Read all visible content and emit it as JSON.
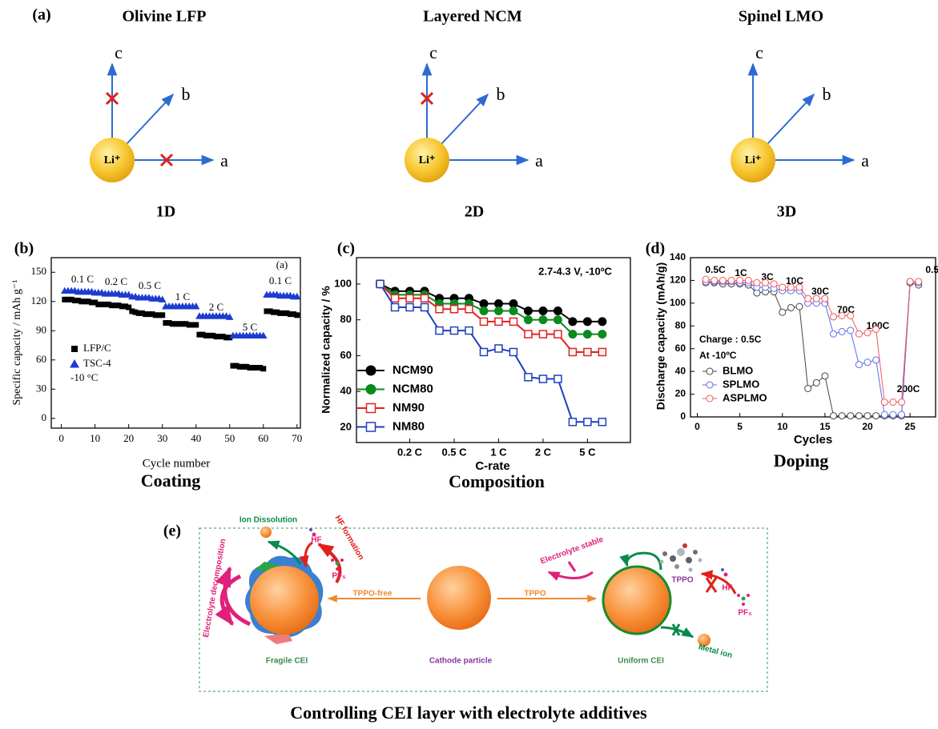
{
  "panel_a": {
    "label": "(a)",
    "diagrams": [
      {
        "title": "Olivine LFP",
        "axes": [
          "c",
          "b",
          "a"
        ],
        "ion": "Li⁺",
        "dimension": "1D"
      },
      {
        "title": "Layered NCM",
        "axes": [
          "c",
          "b",
          "a"
        ],
        "ion": "Li⁺",
        "dimension": "2D"
      },
      {
        "title": "Spinel LMO",
        "axes": [
          "c",
          "b",
          "a"
        ],
        "ion": "Li⁺",
        "dimension": "3D"
      }
    ]
  },
  "chart_data": [
    {
      "type": "scatter",
      "panel_label": "(b)",
      "caption": "Coating",
      "x_label": "Cycle number",
      "y_label": "Specific capacity / mAh g⁻¹",
      "x": [
        1,
        2,
        3,
        4,
        5,
        6,
        7,
        8,
        9,
        10,
        11,
        12,
        13,
        14,
        15,
        16,
        17,
        18,
        19,
        20,
        21,
        22,
        23,
        24,
        25,
        26,
        27,
        28,
        29,
        30,
        31,
        32,
        33,
        34,
        35,
        36,
        37,
        38,
        39,
        40,
        41,
        42,
        43,
        44,
        45,
        46,
        47,
        48,
        49,
        50,
        51,
        52,
        53,
        54,
        55,
        56,
        57,
        58,
        59,
        60,
        61,
        62,
        63,
        64,
        65,
        66,
        67,
        68,
        69,
        70
      ],
      "xlim": [
        -3,
        71
      ],
      "xticks": [
        0,
        10,
        20,
        30,
        40,
        50,
        60,
        70
      ],
      "ylim": [
        -10,
        165
      ],
      "yticks": [
        0,
        30,
        60,
        90,
        120,
        150
      ],
      "annotations": [
        "0.1 C",
        "0.2 C",
        "0.5 C",
        "1 C",
        "2 C",
        "5 C",
        "0.1 C",
        "(a)",
        "-10 °C"
      ],
      "legend": "lower left",
      "series": [
        {
          "name": "LFP/C",
          "color": "#000000",
          "marker": "square",
          "values": [
            122,
            122,
            122,
            121,
            121,
            120,
            120,
            120,
            119,
            119,
            117,
            117,
            117,
            117,
            116,
            116,
            116,
            115,
            115,
            114,
            110,
            109,
            108,
            108,
            107,
            107,
            107,
            106,
            106,
            106,
            98,
            98,
            97,
            97,
            97,
            97,
            97,
            96,
            96,
            96,
            86,
            86,
            85,
            85,
            85,
            84,
            84,
            84,
            83,
            83,
            54,
            54,
            53,
            53,
            53,
            52,
            52,
            52,
            52,
            51,
            110,
            110,
            109,
            109,
            108,
            108,
            108,
            107,
            107,
            106
          ]
        },
        {
          "name": "TSC-4",
          "color": "#1c3ccf",
          "marker": "triangle",
          "values": [
            131,
            131,
            131,
            131,
            130,
            130,
            130,
            130,
            130,
            129,
            129,
            129,
            128,
            128,
            128,
            128,
            128,
            127,
            127,
            127,
            125,
            125,
            124,
            124,
            124,
            124,
            123,
            123,
            123,
            122,
            115,
            115,
            115,
            115,
            115,
            115,
            115,
            115,
            115,
            115,
            105,
            105,
            105,
            105,
            105,
            105,
            105,
            105,
            105,
            104,
            85,
            85,
            85,
            85,
            85,
            85,
            85,
            85,
            85,
            85,
            127,
            127,
            127,
            127,
            126,
            126,
            126,
            126,
            125,
            125
          ]
        }
      ]
    },
    {
      "type": "line",
      "panel_label": "(c)",
      "caption": "Composition",
      "x_label": "C-rate",
      "y_label": "Normalized capacity / %",
      "x": [
        1,
        2,
        3,
        4,
        5,
        6,
        7,
        8,
        9,
        10,
        11,
        12,
        13,
        14,
        15,
        16
      ],
      "xlim": [
        -0.6,
        17.9
      ],
      "xticks": [
        {
          "value": 3,
          "label": "0.2 C"
        },
        {
          "value": 6,
          "label": "0.5 C"
        },
        {
          "value": 9,
          "label": "1 C"
        },
        {
          "value": 12,
          "label": "2 C"
        },
        {
          "value": 15,
          "label": "5 C"
        }
      ],
      "ylim": [
        11.5,
        114.7
      ],
      "yticks": [
        20,
        40,
        60,
        80,
        100
      ],
      "annotations": [
        "2.7-4.3 V, -10ºC"
      ],
      "legend": "lower left",
      "series": [
        {
          "name": "NCM90",
          "color": "#000000",
          "marker": "circle",
          "values": [
            100,
            96,
            96,
            96,
            92,
            92,
            92,
            89,
            89,
            89,
            85,
            85,
            85,
            79,
            79,
            79
          ]
        },
        {
          "name": "NCM80",
          "color": "#0b8a1f",
          "marker": "circle",
          "values": [
            100,
            94,
            94,
            94,
            89,
            89,
            89,
            85,
            85,
            85,
            80,
            80,
            80,
            72,
            72,
            72
          ]
        },
        {
          "name": "NM90",
          "color": "#e02020",
          "marker": "square-open",
          "values": [
            100,
            92,
            92,
            92,
            86,
            86,
            86,
            79,
            79,
            79,
            72,
            72,
            72,
            62,
            62,
            62
          ]
        },
        {
          "name": "NM80",
          "color": "#1f3fbf",
          "marker": "square-open",
          "values": [
            100,
            87,
            87,
            87,
            74,
            74,
            74,
            62,
            64,
            62,
            48,
            47,
            47,
            23,
            23,
            23
          ]
        }
      ]
    },
    {
      "type": "line",
      "panel_label": "(d)",
      "caption": "Doping",
      "x_label": "Cycles",
      "y_label": "Discharge capacity (mAh/g)",
      "x": [
        1,
        2,
        3,
        4,
        5,
        6,
        7,
        8,
        9,
        10,
        11,
        12,
        13,
        14,
        15,
        16,
        17,
        18,
        19,
        20,
        21,
        22,
        23,
        24,
        25,
        26
      ],
      "xlim": [
        -0.8,
        28
      ],
      "xticks": [
        0,
        5,
        10,
        15,
        20,
        25
      ],
      "ylim": [
        0,
        140
      ],
      "yticks": [
        0,
        20,
        40,
        60,
        80,
        100,
        120,
        140
      ],
      "annotations": [
        "0.5C",
        "1C",
        "3C",
        "10C",
        "30C",
        "70C",
        "100C",
        "200C",
        "0.5C",
        "Charge : 0.5C",
        "At -10ºC"
      ],
      "legend": "center left",
      "series": [
        {
          "name": "BLMO",
          "color": "#444444",
          "marker": "circle-open",
          "values": [
            118,
            118,
            117,
            117,
            117,
            116,
            109,
            110,
            110,
            92,
            96,
            97,
            25,
            30,
            36,
            1,
            1,
            1,
            1,
            1,
            1,
            1,
            1,
            1,
            118,
            116
          ]
        },
        {
          "name": "SPLMO",
          "color": "#5b6cf0",
          "marker": "circle-open",
          "values": [
            119,
            119,
            119,
            119,
            118,
            118,
            114,
            114,
            113,
            111,
            111,
            111,
            100,
            100,
            100,
            73,
            75,
            76,
            46,
            48,
            50,
            2,
            2,
            2,
            119,
            118
          ]
        },
        {
          "name": "ASPLMO",
          "color": "#f0585a",
          "marker": "circle-open",
          "values": [
            121,
            120,
            120,
            120,
            120,
            120,
            118,
            118,
            117,
            114,
            114,
            114,
            104,
            104,
            104,
            88,
            89,
            89,
            73,
            74,
            77,
            13,
            13,
            13,
            119,
            119
          ]
        }
      ]
    }
  ],
  "panel_e": {
    "label": "(e)",
    "ion_dissolution": "Ion Dissolution",
    "hf_formation": "HF formation",
    "hf_left": "HF",
    "pf5_left": "PF₅",
    "decomposition": "Electrolyte decomposition",
    "tppo_free": "TPPO-free",
    "tppo": "TPPO",
    "cathode": "Cathode particle",
    "fragile": "Fragile CEI",
    "uniform": "Uniform CEI",
    "stable": "Electrolyte stable",
    "tppo_molecule": "TPPO",
    "hf_right": "HF",
    "pf5_right": "PF₅",
    "metal_ion": "Metal ion",
    "caption": "Controlling CEI layer with electrolyte additives"
  }
}
